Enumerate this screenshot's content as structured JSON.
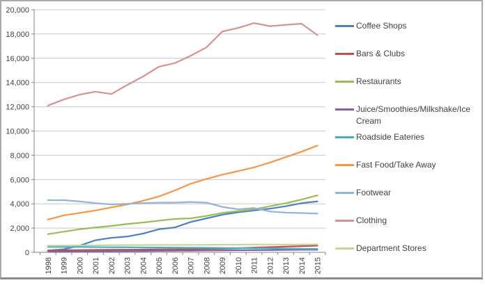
{
  "chart_data": {
    "type": "line",
    "title": "",
    "xlabel": "",
    "ylabel": "",
    "x": [
      "1998",
      "1999",
      "2000",
      "2001",
      "2002",
      "2003",
      "2004",
      "2005",
      "2006",
      "2007",
      "2008",
      "2009",
      "2010",
      "2011",
      "2012",
      "2013",
      "2014",
      "2015"
    ],
    "ylim": [
      0,
      20000
    ],
    "ytick_interval": 2000,
    "yticks": [
      "0",
      "2,000",
      "4,000",
      "6,000",
      "8,000",
      "10,000",
      "12,000",
      "14,000",
      "16,000",
      "18,000",
      "20,000"
    ],
    "grid": "horizontal",
    "legend_position": "right",
    "axis_color": "#868686",
    "grid_color": "#c6c6c6",
    "label_color": "#3f3f3f",
    "series": [
      {
        "name": "Coffee Shops",
        "color": "#4F81BD",
        "values": [
          150,
          250,
          550,
          1000,
          1200,
          1300,
          1550,
          1900,
          2050,
          2500,
          2800,
          3100,
          3300,
          3450,
          3600,
          3800,
          4050,
          4200
        ]
      },
      {
        "name": "Bars & Clubs",
        "color": "#C0504D",
        "values": [
          150,
          170,
          190,
          200,
          210,
          220,
          230,
          240,
          250,
          260,
          280,
          300,
          340,
          390,
          430,
          470,
          510,
          550
        ]
      },
      {
        "name": "Restaurants",
        "color": "#9BBB59",
        "values": [
          1500,
          1700,
          1900,
          2050,
          2180,
          2330,
          2460,
          2610,
          2750,
          2800,
          3000,
          3250,
          3400,
          3550,
          3800,
          4050,
          4350,
          4700
        ]
      },
      {
        "name": "Juice/Smoothies/Milkshake/Ice Cream",
        "color": "#8064A2",
        "values": [
          50,
          60,
          70,
          80,
          90,
          100,
          110,
          120,
          130,
          140,
          150,
          160,
          170,
          180,
          190,
          200,
          210,
          220
        ]
      },
      {
        "name": "Roadside Eateries",
        "color": "#4BACC6",
        "values": [
          450,
          445,
          440,
          430,
          420,
          410,
          400,
          395,
          390,
          380,
          370,
          360,
          350,
          340,
          330,
          310,
          295,
          280
        ]
      },
      {
        "name": "Fast Food/Take Away",
        "color": "#F79646",
        "values": [
          2700,
          3050,
          3250,
          3450,
          3700,
          3950,
          4250,
          4600,
          5100,
          5650,
          6050,
          6400,
          6700,
          7000,
          7400,
          7850,
          8300,
          8800
        ]
      },
      {
        "name": "Footwear",
        "color": "#95B3D7",
        "values": [
          4300,
          4300,
          4200,
          4050,
          3950,
          4000,
          4050,
          4100,
          4100,
          4150,
          4100,
          3750,
          3550,
          3650,
          3370,
          3270,
          3240,
          3200
        ]
      },
      {
        "name": "Clothing",
        "color": "#D39492",
        "values": [
          12100,
          12600,
          13000,
          13250,
          13050,
          13800,
          14500,
          15300,
          15600,
          16200,
          16900,
          18200,
          18500,
          18900,
          18650,
          18750,
          18850,
          17900
        ]
      },
      {
        "name": "Department Stores",
        "color": "#C3D69B",
        "values": [
          550,
          560,
          570,
          580,
          590,
          600,
          600,
          610,
          610,
          620,
          620,
          630,
          630,
          640,
          640,
          650,
          650,
          660
        ]
      }
    ]
  }
}
